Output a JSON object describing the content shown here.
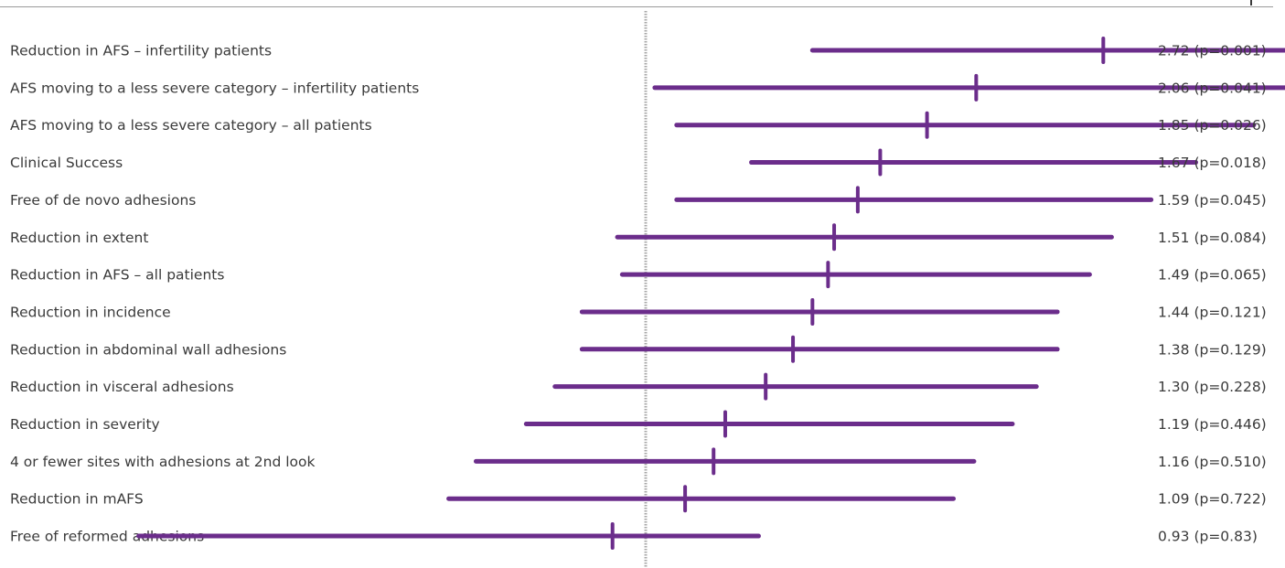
{
  "chart_data": {
    "type": "forest",
    "reference_value": 1.0,
    "accent_color": "#6b2d8b",
    "reference_line_color": "#a8a8a8",
    "rows": [
      {
        "label": "Reduction in AFS – infertility patients",
        "estimate": 2.72,
        "lo": 1.44,
        "hi": 5.04,
        "value_label": "2.72 (p=0.001)"
      },
      {
        "label": "AFS moving to a less severe category – infertility patients",
        "estimate": 2.06,
        "lo": 1.02,
        "hi": 4.95,
        "value_label": "2.06 (p=0.041)"
      },
      {
        "label": "AFS moving to a less severe category – all patients",
        "estimate": 1.85,
        "lo": 1.07,
        "hi": 3.78,
        "value_label": "1.85 (p=0.026)"
      },
      {
        "label": "Clinical Success",
        "estimate": 1.67,
        "lo": 1.26,
        "hi": 3.33,
        "value_label": "1.67 (p=0.018)"
      },
      {
        "label": "Free of de novo adhesions",
        "estimate": 1.59,
        "lo": 1.07,
        "hi": 3.02,
        "value_label": "1.59 (p=0.045)"
      },
      {
        "label": "Reduction in extent",
        "estimate": 1.51,
        "lo": 0.94,
        "hi": 2.77,
        "value_label": "1.51 (p=0.084)"
      },
      {
        "label": "Reduction in AFS – all patients",
        "estimate": 1.49,
        "lo": 0.95,
        "hi": 2.64,
        "value_label": "1.49 (p=0.065)"
      },
      {
        "label": "Reduction in incidence",
        "estimate": 1.44,
        "lo": 0.87,
        "hi": 2.46,
        "value_label": "1.44 (p=0.121)"
      },
      {
        "label": "Reduction in abdominal wall adhesions",
        "estimate": 1.38,
        "lo": 0.87,
        "hi": 2.46,
        "value_label": "1.38 (p=0.129)"
      },
      {
        "label": "Reduction in visceral adhesions",
        "estimate": 1.3,
        "lo": 0.82,
        "hi": 2.35,
        "value_label": "1.30 (p=0.228)"
      },
      {
        "label": "Reduction in severity",
        "estimate": 1.19,
        "lo": 0.77,
        "hi": 2.23,
        "value_label": "1.19 (p=0.446)"
      },
      {
        "label": "4 or fewer sites with adhesions at 2nd look",
        "estimate": 1.16,
        "lo": 0.69,
        "hi": 2.05,
        "value_label": "1.16 (p=0.510)"
      },
      {
        "label": "Reduction in mAFS",
        "estimate": 1.09,
        "lo": 0.65,
        "hi": 1.96,
        "value_label": "1.09 (p=0.722)"
      },
      {
        "label": "Free of reformed adhesions",
        "estimate": 0.93,
        "lo": 0.33,
        "hi": 1.28,
        "value_label": "0.93 (p=0.83)"
      }
    ]
  }
}
